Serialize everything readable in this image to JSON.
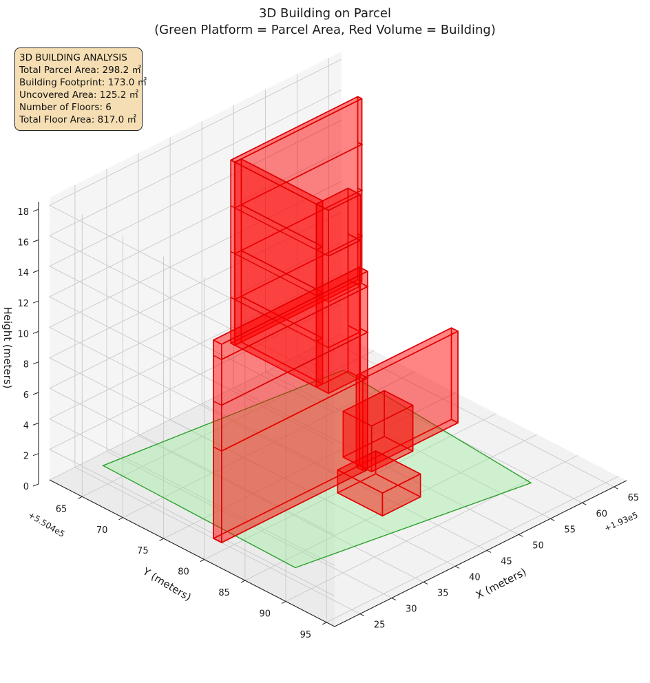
{
  "chart_data": {
    "type": "3d-polygons",
    "title": [
      "3D Building on Parcel",
      "(Green Platform = Parcel Area, Red Volume = Building)"
    ],
    "xlabel": "X (meters)",
    "ylabel": "Y (meters)",
    "zlabel": "Height (meters)",
    "x_offset": "+1.93e5",
    "y_offset": "+5.504e5",
    "xlim": [
      21,
      67
    ],
    "ylim": [
      61,
      96
    ],
    "zlim": [
      0,
      18.5
    ],
    "x_ticks": [
      25,
      30,
      35,
      40,
      45,
      50,
      55,
      60,
      65
    ],
    "y_ticks": [
      65,
      70,
      75,
      80,
      85,
      90,
      95
    ],
    "z_ticks": [
      0,
      2,
      4,
      6,
      8,
      10,
      12,
      14,
      16,
      18
    ],
    "grid": true,
    "parcel": {
      "color": "#2ca02c",
      "fill": "#90ee90",
      "footprint": [
        [
          27.5,
          62.5
        ],
        [
          61.5,
          65.5
        ],
        [
          59.0,
          90.5
        ],
        [
          27.0,
          86.5
        ]
      ]
    },
    "building": {
      "color": "#e00000",
      "fill": "#ff0000",
      "volumes": [
        {
          "x": [
            42.5,
            62.5
          ],
          "y": [
            66.5,
            67.0
          ],
          "z": [
            6.0,
            18.0
          ]
        },
        {
          "x": [
            42.5,
            43.5
          ],
          "y": [
            67.0,
            77.0
          ],
          "z": [
            6.0,
            18.0
          ]
        },
        {
          "x": [
            42.5,
            47.5
          ],
          "y": [
            77.0,
            78.5
          ],
          "z": [
            6.0,
            18.0
          ]
        },
        {
          "x": [
            47.5,
            62.5
          ],
          "y": [
            78.0,
            78.8
          ],
          "z": [
            0.0,
            6.0
          ]
        },
        {
          "x": [
            25.0,
            48.0
          ],
          "y": [
            78.0,
            79.0
          ],
          "z": [
            0.0,
            13.0
          ]
        },
        {
          "x": [
            48.0,
            54.5
          ],
          "y": [
            76.0,
            79.5
          ],
          "z": [
            0.0,
            3.0
          ]
        },
        {
          "x": [
            42.0,
            48.0
          ],
          "y": [
            80.0,
            85.5
          ],
          "z": [
            0.0,
            1.5
          ]
        }
      ]
    },
    "floor_lines_z": [
      6,
      9,
      12,
      15
    ]
  },
  "stats": {
    "heading": "3D BUILDING ANALYSIS",
    "lines": [
      "Total Parcel Area: 298.2 ㎡",
      "Building Footprint: 173.0 ㎡",
      "Uncovered Area: 125.2 ㎡",
      "Number of Floors: 6",
      "Total Floor Area: 817.0 ㎡"
    ]
  }
}
